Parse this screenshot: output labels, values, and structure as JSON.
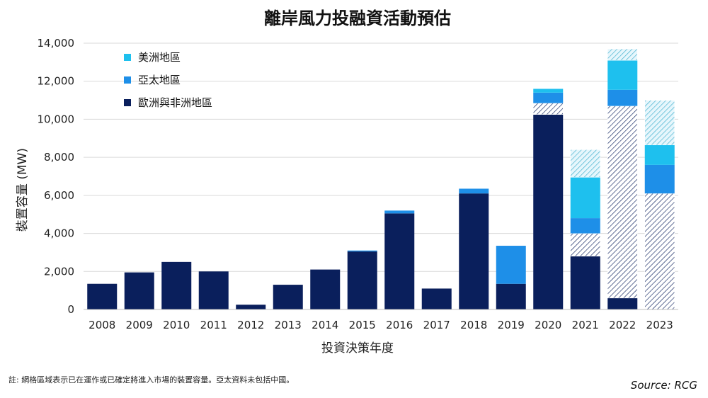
{
  "chart_data": {
    "type": "bar",
    "stacked": true,
    "title": "離岸風力投融資活動預估",
    "xlabel": "投資決策年度",
    "ylabel": "裝置容量 (MW)",
    "ylim": [
      0,
      14000
    ],
    "yticks": [
      0,
      2000,
      4000,
      6000,
      8000,
      10000,
      12000,
      14000
    ],
    "ytick_labels": [
      "0",
      "2,000",
      "4,000",
      "6,000",
      "8,000",
      "10,000",
      "12,000",
      "14,000"
    ],
    "grid": true,
    "legend_position": "top-left",
    "categories": [
      "2008",
      "2009",
      "2010",
      "2011",
      "2012",
      "2013",
      "2014",
      "2015",
      "2016",
      "2017",
      "2018",
      "2019",
      "2020",
      "2021",
      "2022",
      "2023"
    ],
    "series": [
      {
        "name": "歐洲與非洲地區",
        "color": "#0a1f5c",
        "values": [
          1350,
          1950,
          2500,
          2000,
          250,
          1300,
          2100,
          3050,
          5050,
          1100,
          6100,
          1350,
          10250,
          2800,
          600,
          0
        ],
        "hatched_values": [
          0,
          0,
          0,
          0,
          0,
          0,
          0,
          0,
          0,
          0,
          0,
          0,
          600,
          1200,
          10100,
          6100
        ]
      },
      {
        "name": "亞太地區",
        "color": "#1e8fe8",
        "values": [
          0,
          0,
          0,
          0,
          0,
          0,
          0,
          50,
          150,
          0,
          250,
          2000,
          550,
          800,
          850,
          1500
        ],
        "hatched_values": [
          0,
          0,
          0,
          0,
          0,
          0,
          0,
          0,
          0,
          0,
          0,
          0,
          0,
          0,
          0,
          0
        ]
      },
      {
        "name": "美洲地區",
        "color": "#1ec0ee",
        "values": [
          0,
          0,
          0,
          0,
          0,
          0,
          0,
          0,
          0,
          0,
          0,
          0,
          200,
          2150,
          1550,
          1050
        ],
        "hatched_values": [
          0,
          0,
          0,
          0,
          0,
          0,
          0,
          0,
          0,
          0,
          0,
          0,
          0,
          1450,
          600,
          2350
        ]
      }
    ]
  },
  "legend": {
    "items": [
      {
        "label": "美洲地區",
        "color": "#1ec0ee"
      },
      {
        "label": "亞太地區",
        "color": "#1e8fe8"
      },
      {
        "label": "歐洲與非洲地區",
        "color": "#0a1f5c"
      }
    ]
  },
  "footer": {
    "note": "註: 網格區域表示已在運作或已確定將進入市場的裝置容量。亞太資料未包括中國。",
    "source": "Source: RCG"
  }
}
